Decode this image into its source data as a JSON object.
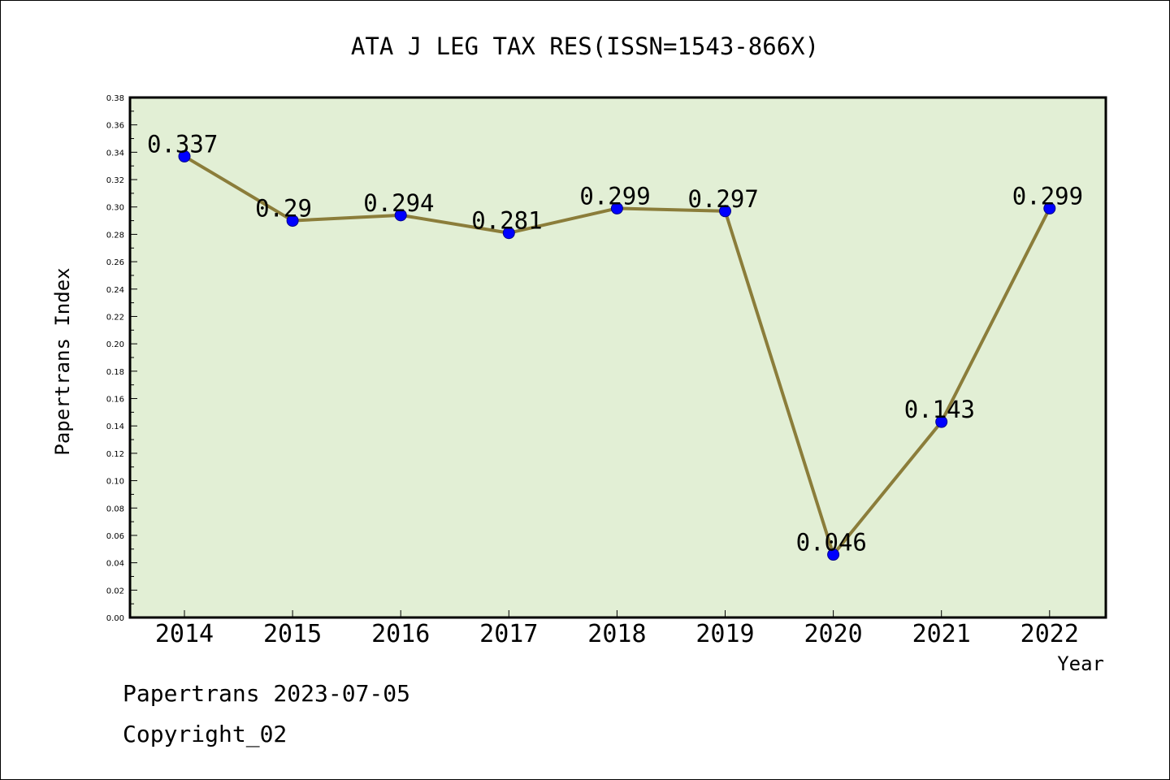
{
  "chart_data": {
    "type": "line",
    "title": "ATA J LEG TAX RES(ISSN=1543-866X)",
    "xlabel": "Year",
    "ylabel": "Papertrans Index",
    "categories": [
      "2014",
      "2015",
      "2016",
      "2017",
      "2018",
      "2019",
      "2020",
      "2021",
      "2022"
    ],
    "series": [
      {
        "values": [
          0.337,
          0.29,
          0.294,
          0.281,
          0.299,
          0.297,
          0.046,
          0.143,
          0.299
        ],
        "labels": [
          "0.337",
          "0.29",
          "0.294",
          "0.281",
          "0.299",
          "0.297",
          "0.046",
          "0.143",
          "0.299"
        ]
      }
    ],
    "ylim": [
      0,
      0.38
    ],
    "yticks": [
      "0.00",
      "0.02",
      "0.04",
      "0.06",
      "0.08",
      "0.10",
      "0.12",
      "0.14",
      "0.16",
      "0.18",
      "0.20",
      "0.22",
      "0.24",
      "0.26",
      "0.28",
      "0.30",
      "0.32",
      "0.34",
      "0.36",
      "0.38"
    ],
    "grid": false,
    "legend": "none",
    "colors": {
      "plot_background": "#e2efd5",
      "line": "#8b7d3a",
      "marker_fill": "#0000ff",
      "marker_stroke": "#00008b",
      "frame": "#000000"
    }
  },
  "footer": {
    "date_text": "Papertrans 2023-07-05",
    "copyright_text": "Copyright_02"
  }
}
